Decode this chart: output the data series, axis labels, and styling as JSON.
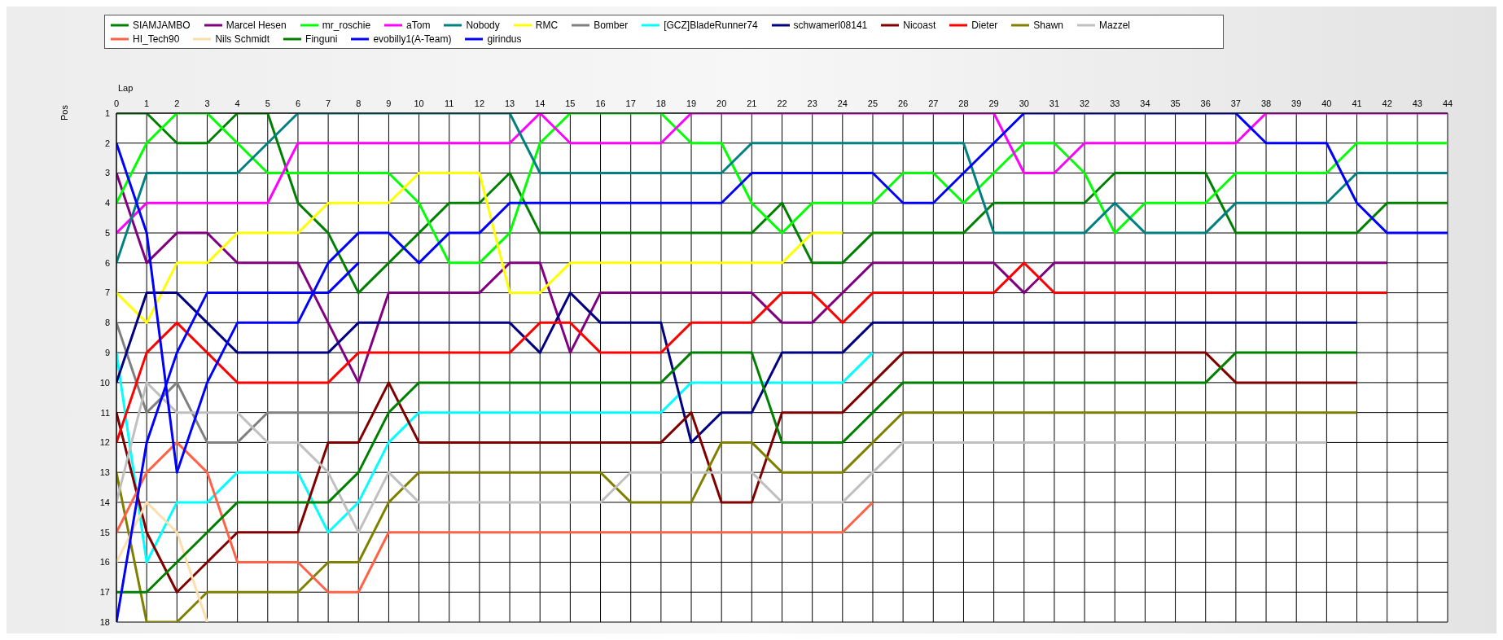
{
  "chart_data": {
    "type": "line",
    "xlabel": "Lap",
    "ylabel": "Pos",
    "x": [
      0,
      1,
      2,
      3,
      4,
      5,
      6,
      7,
      8,
      9,
      10,
      11,
      12,
      13,
      14,
      15,
      16,
      17,
      18,
      19,
      20,
      21,
      22,
      23,
      24,
      25,
      26,
      27,
      28,
      29,
      30,
      31,
      32,
      33,
      34,
      35,
      36,
      37,
      38,
      39,
      40,
      41,
      42,
      43,
      44
    ],
    "xlim": [
      0,
      44
    ],
    "xticks": [
      0,
      1,
      2,
      3,
      4,
      5,
      6,
      7,
      8,
      9,
      10,
      11,
      12,
      13,
      14,
      15,
      16,
      17,
      18,
      19,
      20,
      21,
      22,
      23,
      24,
      25,
      26,
      27,
      28,
      29,
      30,
      31,
      32,
      33,
      34,
      35,
      36,
      37,
      38,
      39,
      40,
      41,
      42,
      43,
      44
    ],
    "ylim": [
      18,
      1
    ],
    "yticks": [
      1,
      2,
      3,
      4,
      5,
      6,
      7,
      8,
      9,
      10,
      11,
      12,
      13,
      14,
      15,
      16,
      17,
      18
    ],
    "grid": true,
    "legend": "top",
    "marker": "none",
    "line_style": "solid",
    "series": [
      {
        "name": "SIAMJAMBO",
        "color": "#008000",
        "values": [
          1,
          1,
          2,
          2,
          1,
          1,
          4,
          5,
          7,
          6,
          5,
          4,
          4,
          3,
          5,
          5,
          5,
          5,
          5,
          5,
          5,
          5,
          4,
          6,
          6,
          5,
          5,
          5,
          5,
          4,
          4,
          4,
          4,
          3,
          3,
          3,
          3,
          5,
          5,
          5,
          5,
          5,
          4,
          4,
          4
        ]
      },
      {
        "name": "Marcel Hesen",
        "color": "#800080",
        "values": [
          3,
          6,
          5,
          5,
          6,
          6,
          6,
          8,
          10,
          7,
          7,
          7,
          7,
          6,
          6,
          9,
          7,
          7,
          7,
          7,
          7,
          7,
          8,
          8,
          7,
          6,
          6,
          6,
          6,
          6,
          7,
          6,
          6,
          6,
          6,
          6,
          6,
          6,
          6,
          6,
          6,
          6,
          6,
          null,
          null
        ]
      },
      {
        "name": "mr_roschie",
        "color": "#00ff00",
        "values": [
          4,
          2,
          1,
          1,
          2,
          3,
          3,
          3,
          3,
          3,
          4,
          6,
          6,
          5,
          2,
          1,
          1,
          1,
          1,
          2,
          2,
          4,
          5,
          4,
          4,
          4,
          3,
          3,
          4,
          3,
          2,
          2,
          3,
          5,
          4,
          4,
          4,
          3,
          3,
          3,
          3,
          2,
          2,
          2,
          2
        ]
      },
      {
        "name": "aTom",
        "color": "#ff00ff",
        "values": [
          5,
          4,
          4,
          4,
          4,
          4,
          2,
          2,
          2,
          2,
          2,
          2,
          2,
          2,
          1,
          2,
          2,
          2,
          2,
          1,
          1,
          1,
          1,
          1,
          1,
          1,
          1,
          1,
          1,
          1,
          3,
          3,
          2,
          2,
          2,
          2,
          2,
          2,
          1,
          1,
          1,
          1,
          1,
          1,
          1
        ]
      },
      {
        "name": "Nobody",
        "color": "#008080",
        "values": [
          6,
          3,
          3,
          3,
          3,
          2,
          1,
          1,
          1,
          1,
          1,
          1,
          1,
          1,
          3,
          3,
          3,
          3,
          3,
          3,
          3,
          2,
          2,
          2,
          2,
          2,
          2,
          2,
          2,
          5,
          5,
          5,
          5,
          4,
          5,
          5,
          5,
          4,
          4,
          4,
          4,
          3,
          3,
          3,
          3
        ]
      },
      {
        "name": "RMC",
        "color": "#ffff00",
        "values": [
          7,
          8,
          6,
          6,
          5,
          5,
          5,
          4,
          4,
          4,
          3,
          3,
          3,
          7,
          7,
          6,
          6,
          6,
          6,
          6,
          6,
          6,
          6,
          5,
          5,
          null,
          null,
          null,
          null,
          null,
          null,
          null,
          null,
          null,
          null,
          null,
          null,
          null,
          null,
          null,
          null,
          null,
          null,
          null,
          null
        ]
      },
      {
        "name": "Bomber",
        "color": "#808080",
        "values": [
          8,
          11,
          10,
          12,
          12,
          11,
          11,
          11,
          11,
          null,
          null,
          null,
          null,
          null,
          null,
          null,
          null,
          null,
          null,
          null,
          null,
          null,
          null,
          null,
          null,
          null,
          null,
          null,
          null,
          null,
          null,
          null,
          null,
          null,
          null,
          null,
          null,
          null,
          null,
          null,
          null,
          null,
          null,
          null,
          null
        ]
      },
      {
        "name": "[GCZ]BladeRunner74",
        "color": "#00ffff",
        "values": [
          9,
          16,
          14,
          14,
          13,
          13,
          13,
          15,
          14,
          12,
          11,
          11,
          11,
          11,
          11,
          11,
          11,
          11,
          11,
          10,
          10,
          10,
          10,
          10,
          10,
          9,
          null,
          null,
          null,
          null,
          null,
          null,
          null,
          null,
          null,
          null,
          null,
          null,
          null,
          null,
          null,
          null,
          null,
          null,
          null
        ]
      },
      {
        "name": "schwamerl08141",
        "color": "#000080",
        "values": [
          10,
          7,
          7,
          8,
          9,
          9,
          9,
          9,
          8,
          8,
          8,
          8,
          8,
          8,
          9,
          7,
          8,
          8,
          8,
          12,
          11,
          11,
          9,
          9,
          9,
          8,
          8,
          8,
          8,
          8,
          8,
          8,
          8,
          8,
          8,
          8,
          8,
          8,
          8,
          8,
          8,
          8,
          null,
          null,
          null
        ]
      },
      {
        "name": "Nicoast",
        "color": "#800000",
        "values": [
          11,
          15,
          17,
          16,
          15,
          15,
          15,
          12,
          12,
          10,
          12,
          12,
          12,
          12,
          12,
          12,
          12,
          12,
          12,
          11,
          14,
          14,
          11,
          11,
          11,
          10,
          9,
          9,
          9,
          9,
          9,
          9,
          9,
          9,
          9,
          9,
          9,
          10,
          10,
          10,
          10,
          10,
          null,
          null,
          null
        ]
      },
      {
        "name": "Dieter",
        "color": "#ff0000",
        "values": [
          12,
          9,
          8,
          9,
          10,
          10,
          10,
          10,
          9,
          9,
          9,
          9,
          9,
          9,
          8,
          8,
          9,
          9,
          9,
          8,
          8,
          8,
          7,
          7,
          8,
          7,
          7,
          7,
          7,
          7,
          6,
          7,
          7,
          7,
          7,
          7,
          7,
          7,
          7,
          7,
          7,
          7,
          7,
          null,
          null
        ]
      },
      {
        "name": "Shawn",
        "color": "#808000",
        "values": [
          13,
          18,
          18,
          17,
          17,
          17,
          17,
          16,
          16,
          14,
          13,
          13,
          13,
          13,
          13,
          13,
          13,
          14,
          14,
          14,
          12,
          12,
          13,
          13,
          13,
          12,
          11,
          11,
          11,
          11,
          11,
          11,
          11,
          11,
          11,
          11,
          11,
          11,
          11,
          11,
          11,
          11,
          null,
          null,
          null
        ]
      },
      {
        "name": "Mazzel",
        "color": "#c0c0c0",
        "values": [
          14,
          10,
          11,
          11,
          11,
          12,
          12,
          13,
          15,
          13,
          14,
          14,
          14,
          14,
          14,
          14,
          14,
          13,
          13,
          13,
          13,
          13,
          14,
          14,
          14,
          13,
          12,
          12,
          12,
          12,
          12,
          12,
          12,
          12,
          12,
          12,
          12,
          12,
          12,
          12,
          12,
          null,
          null,
          null,
          null
        ]
      },
      {
        "name": "HI_Tech90",
        "color": "#ff6347",
        "values": [
          15,
          13,
          12,
          13,
          16,
          16,
          16,
          17,
          17,
          15,
          15,
          15,
          15,
          15,
          15,
          15,
          15,
          15,
          15,
          15,
          15,
          15,
          15,
          15,
          15,
          14,
          null,
          null,
          null,
          null,
          null,
          null,
          null,
          null,
          null,
          null,
          null,
          null,
          null,
          null,
          null,
          null,
          null,
          null,
          null
        ]
      },
      {
        "name": "Nils Schmidt",
        "color": "#ffdead",
        "values": [
          16,
          14,
          15,
          18,
          null,
          null,
          null,
          null,
          null,
          null,
          null,
          null,
          null,
          null,
          null,
          null,
          null,
          null,
          null,
          null,
          null,
          null,
          null,
          null,
          null,
          null,
          null,
          null,
          null,
          null,
          null,
          null,
          null,
          null,
          null,
          null,
          null,
          null,
          null,
          null,
          null,
          null,
          null,
          null,
          null
        ]
      },
      {
        "name": "Finguni",
        "color": "#008000",
        "values": [
          17,
          17,
          16,
          15,
          14,
          14,
          14,
          14,
          13,
          11,
          10,
          10,
          10,
          10,
          10,
          10,
          10,
          10,
          10,
          9,
          9,
          9,
          12,
          12,
          12,
          11,
          10,
          10,
          10,
          10,
          10,
          10,
          10,
          10,
          10,
          10,
          10,
          9,
          9,
          9,
          9,
          9,
          null,
          null,
          null
        ]
      },
      {
        "name": "evobilly1(A-Team)",
        "color": "#0000ff",
        "values": [
          2,
          5,
          13,
          10,
          8,
          8,
          8,
          6,
          5,
          5,
          6,
          5,
          5,
          4,
          4,
          4,
          4,
          4,
          4,
          4,
          4,
          3,
          3,
          3,
          3,
          3,
          4,
          4,
          3,
          2,
          1,
          1,
          1,
          1,
          1,
          1,
          1,
          1,
          2,
          2,
          2,
          4,
          5,
          5,
          5
        ]
      },
      {
        "name": "girindus",
        "color": "#0000ff",
        "values": [
          18,
          12,
          9,
          7,
          7,
          7,
          7,
          7,
          6,
          null,
          null,
          null,
          null,
          null,
          null,
          null,
          null,
          null,
          null,
          null,
          null,
          null,
          null,
          null,
          null,
          null,
          null,
          null,
          null,
          null,
          null,
          null,
          null,
          null,
          null,
          null,
          null,
          null,
          null,
          null,
          null,
          null,
          null,
          null,
          null
        ]
      }
    ]
  }
}
